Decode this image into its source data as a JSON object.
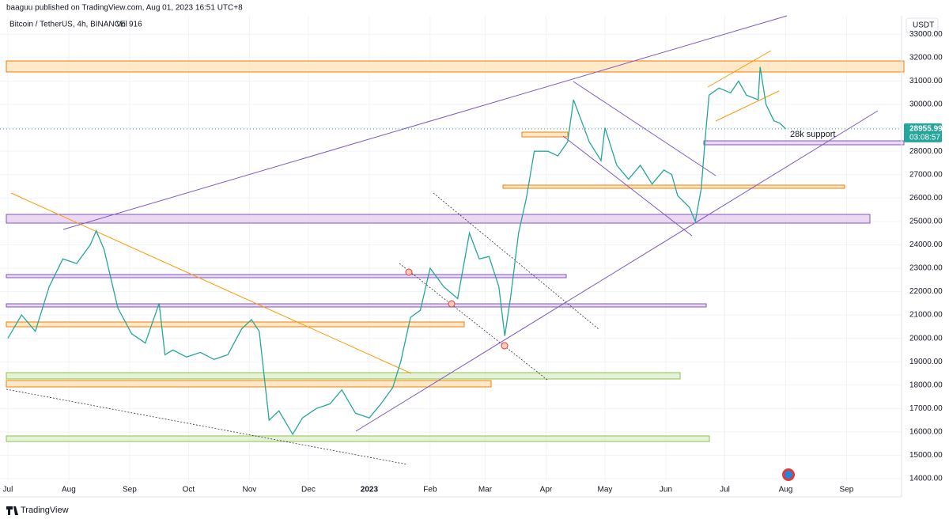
{
  "header": {
    "published": "baaguu published on TradingView.com, Aug 01, 2023 16:51 UTC+8"
  },
  "chart_data": {
    "type": "line",
    "title": "Bitcoin / TetherUS, 4h, BINANCE",
    "volume_label": "Vol",
    "volume": 916,
    "currency": "USDT",
    "last_price": 28955.99,
    "countdown": "03:08:57",
    "annotation": "28k support",
    "color": "#26a69a",
    "x": [
      0,
      7,
      14,
      21,
      28,
      35,
      42,
      45,
      49,
      56,
      63,
      70,
      77,
      80,
      84,
      91,
      98,
      105,
      112,
      119,
      124,
      128,
      131,
      133,
      138,
      145,
      150,
      157,
      164,
      170,
      177,
      184,
      190,
      196,
      200,
      205,
      210,
      215,
      222,
      229,
      235,
      240,
      245,
      250,
      253,
      256,
      260,
      264,
      268,
      275,
      280,
      285,
      288,
      292,
      296,
      302,
      304,
      310,
      316,
      322,
      328,
      334,
      338,
      341,
      347,
      350,
      353,
      355,
      357,
      362,
      368,
      372,
      376,
      382,
      383,
      386,
      390,
      393,
      396
    ],
    "values": [
      20000,
      21000,
      20300,
      22200,
      23400,
      23200,
      24000,
      24600,
      23800,
      21300,
      20200,
      19800,
      21500,
      19300,
      19500,
      19200,
      19400,
      19100,
      19300,
      20400,
      20800,
      20300,
      18000,
      16500,
      16900,
      15900,
      16600,
      17000,
      17200,
      17800,
      16800,
      16600,
      17200,
      17900,
      19000,
      20900,
      21200,
      23000,
      22200,
      21700,
      24500,
      23400,
      23500,
      22200,
      20100,
      21800,
      24500,
      26000,
      28000,
      28000,
      27800,
      28400,
      30200,
      29300,
      28400,
      27600,
      29000,
      27400,
      26800,
      27400,
      26600,
      27200,
      27000,
      26100,
      25600,
      25000,
      26400,
      28500,
      30400,
      30700,
      30500,
      31000,
      30400,
      30200,
      31600,
      30000,
      29300,
      29200,
      28955.99
    ],
    "xlim": [
      -4,
      455
    ],
    "ylim": [
      13900,
      33790
    ],
    "xticks": [
      {
        "value": 0,
        "label": "Jul"
      },
      {
        "value": 31,
        "label": "Aug"
      },
      {
        "value": 62,
        "label": "Sep"
      },
      {
        "value": 92,
        "label": "Oct"
      },
      {
        "value": 123,
        "label": "Nov"
      },
      {
        "value": 153,
        "label": "Dec"
      },
      {
        "value": 184,
        "label": "2023"
      },
      {
        "value": 215,
        "label": "Feb"
      },
      {
        "value": 243,
        "label": "Mar"
      },
      {
        "value": 274,
        "label": "Apr"
      },
      {
        "value": 304,
        "label": "May"
      },
      {
        "value": 335,
        "label": "Jun"
      },
      {
        "value": 365,
        "label": "Jul"
      },
      {
        "value": 396,
        "label": "Aug"
      },
      {
        "value": 427,
        "label": "Sep"
      }
    ],
    "yticks": [
      {
        "value": 14000,
        "label": "14000.00"
      },
      {
        "value": 15000,
        "label": "15000.00"
      },
      {
        "value": 16000,
        "label": "16000.00"
      },
      {
        "value": 17000,
        "label": "17000.00"
      },
      {
        "value": 18000,
        "label": "18000.00"
      },
      {
        "value": 19000,
        "label": "19000.00"
      },
      {
        "value": 20000,
        "label": "20000.00"
      },
      {
        "value": 21000,
        "label": "21000.00"
      },
      {
        "value": 22000,
        "label": "22000.00"
      },
      {
        "value": 23000,
        "label": "23000.00"
      },
      {
        "value": 24000,
        "label": "24000.00"
      },
      {
        "value": 25000,
        "label": "25000.00"
      },
      {
        "value": 26000,
        "label": "26000.00"
      },
      {
        "value": 27000,
        "label": "27000.00"
      },
      {
        "value": 28000,
        "label": "28000.00"
      },
      {
        "value": 29000,
        "label": "29000.00"
      },
      {
        "value": 30000,
        "label": "30000.00"
      },
      {
        "value": 31000,
        "label": "31000.00"
      },
      {
        "value": 32000,
        "label": "32000.00"
      },
      {
        "value": 33000,
        "label": "33000.00"
      }
    ],
    "grid": true
  },
  "footer": {
    "brand": "TradingView"
  }
}
